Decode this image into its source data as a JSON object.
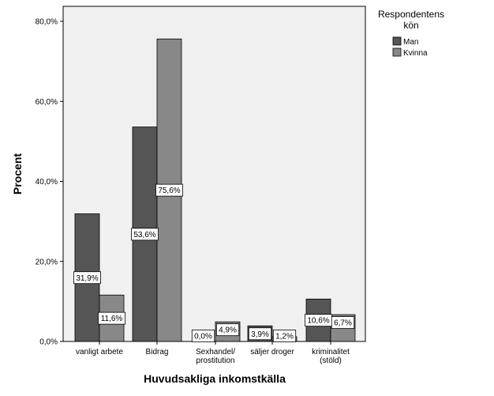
{
  "chart_data": {
    "type": "bar",
    "title": "",
    "xlabel": "Huvudsakliga inkomstkälla",
    "ylabel": "Procent",
    "ylim": [
      0,
      82
    ],
    "yticks": [
      "0,0%",
      "20,0%",
      "40,0%",
      "60,0%",
      "80,0%"
    ],
    "ytick_values": [
      0,
      20,
      40,
      60,
      80
    ],
    "categories": [
      [
        "vanligt arbete"
      ],
      [
        "Bidrag"
      ],
      [
        "Sexhandel/",
        "prostitution"
      ],
      [
        "säljer droger"
      ],
      [
        "kriminalitet",
        "(stöld)"
      ]
    ],
    "series": [
      {
        "name": "Man",
        "color": "#555555",
        "values": [
          31.9,
          53.6,
          0.0,
          3.9,
          10.6
        ],
        "labels": [
          "31,9%",
          "53,6%",
          "0,0%",
          "3,9%",
          "10,6%"
        ]
      },
      {
        "name": "Kvinna",
        "color": "#888888",
        "values": [
          11.6,
          75.6,
          4.9,
          1.2,
          6.7
        ],
        "labels": [
          "11,6%",
          "75,6%",
          "4,9%",
          "1,2%",
          "6,7%"
        ]
      }
    ],
    "legend": {
      "title": [
        "Respondentens",
        "kön"
      ],
      "position": "top-right"
    },
    "plot_background": "#f0f0f0",
    "grid": false
  }
}
